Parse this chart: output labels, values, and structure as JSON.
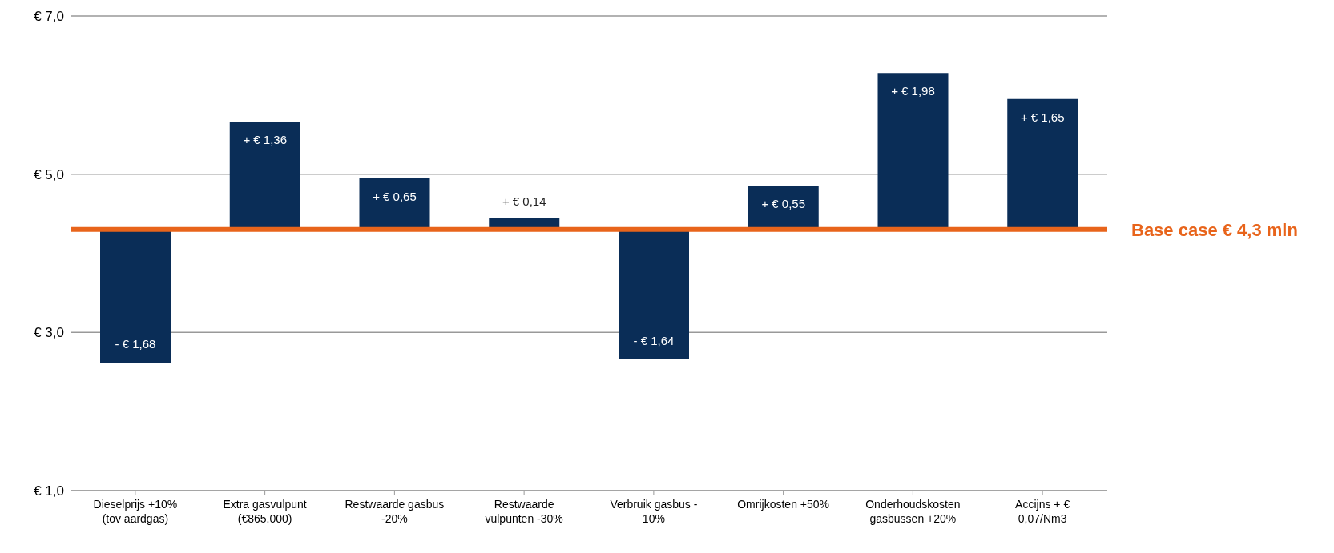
{
  "chart_data": {
    "type": "bar",
    "categories": [
      "Dieselprijs +10% (tov aardgas)",
      "Extra gasvulpunt (€865.000)",
      "Restwaarde gasbus -20%",
      "Restwaarde vulpunten -30%",
      "Verbruik gasbus - 10%",
      "Omrijkosten +50%",
      "Onderhoudskosten gasbussen +20%",
      "Accijns + € 0,07/Nm3"
    ],
    "values": [
      -1.68,
      1.36,
      0.65,
      0.14,
      -1.64,
      0.55,
      1.98,
      1.65
    ],
    "base": [
      4.3,
      4.3,
      4.3,
      4.3,
      4.3,
      4.3,
      4.3,
      4.3
    ],
    "color": "#0a2d57",
    "value_labels": [
      "- € 1,68",
      "+ € 1,36",
      "+ € 0,65",
      "+ € 0,14",
      "- € 1,64",
      "+ € 0,55",
      "+ € 1,98",
      "+ € 1,65"
    ],
    "ylim": [
      1,
      7
    ],
    "yticks": [
      {
        "value": 1,
        "label": "€ 1,0"
      },
      {
        "value": 3,
        "label": "€ 3,0"
      },
      {
        "value": 5,
        "label": "€ 5,0"
      },
      {
        "value": 7,
        "label": "€ 7,0"
      }
    ],
    "grid": "y",
    "ref_lines": [
      {
        "axis": "y",
        "value": 4.3,
        "label": "Base case € 4,3 mln",
        "color": "#e8641b"
      }
    ]
  }
}
